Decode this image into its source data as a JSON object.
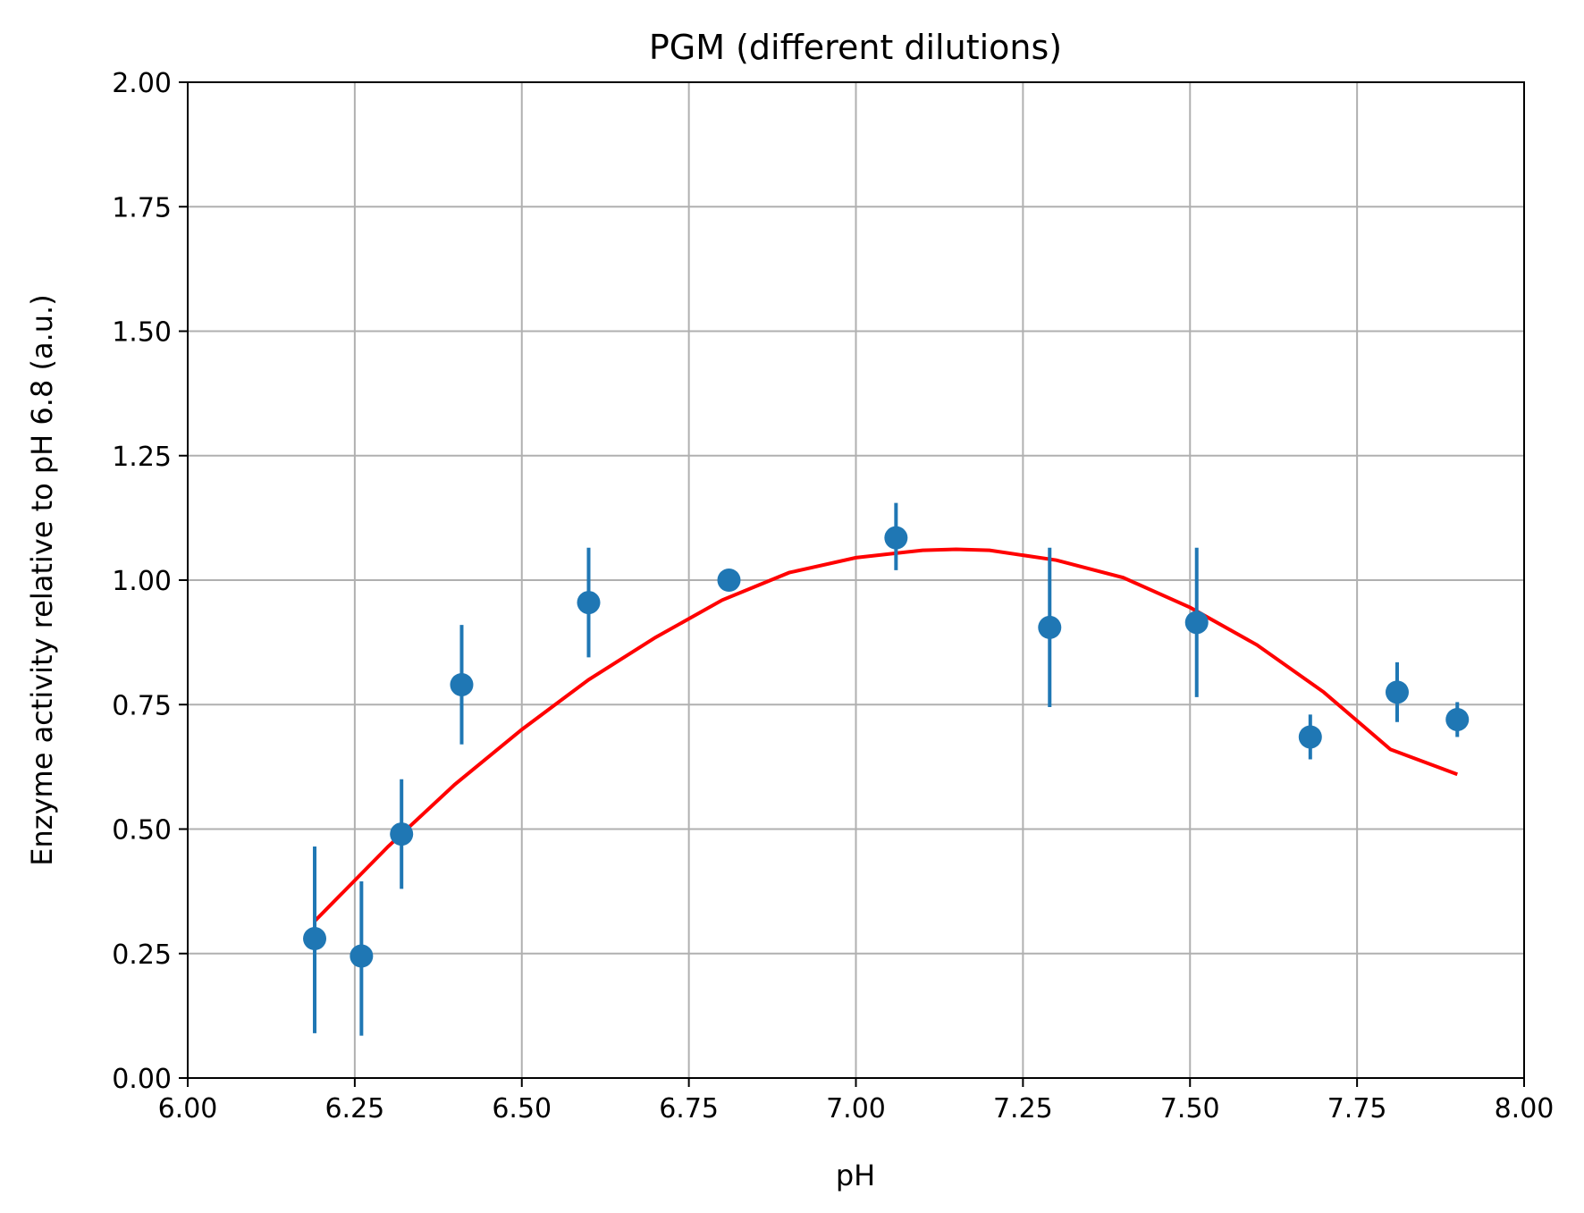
{
  "chart_data": {
    "type": "scatter",
    "title": "PGM (different dilutions)",
    "xlabel": "pH",
    "ylabel": "Enzyme activity relative to pH 6.8 (a.u.)",
    "xlim": [
      6.0,
      8.0
    ],
    "ylim": [
      0.0,
      2.0
    ],
    "xticks": [
      "6.00",
      "6.25",
      "6.50",
      "6.75",
      "7.00",
      "7.25",
      "7.50",
      "7.75",
      "8.00"
    ],
    "yticks": [
      "0.00",
      "0.25",
      "0.50",
      "0.75",
      "1.00",
      "1.25",
      "1.50",
      "1.75",
      "2.00"
    ],
    "grid": true,
    "colors": {
      "points": "#1f77b4",
      "fit": "#ff0000",
      "grid": "#b0b0b0"
    },
    "series": [
      {
        "kind": "errorbar",
        "x": [
          6.19,
          6.26,
          6.32,
          6.41,
          6.6,
          6.81,
          7.06,
          7.29,
          7.51,
          7.68,
          7.81,
          7.9
        ],
        "y": [
          0.28,
          0.245,
          0.49,
          0.79,
          0.955,
          1.0,
          1.085,
          0.905,
          0.915,
          0.685,
          0.775,
          0.72
        ],
        "yerr_low": [
          0.09,
          0.085,
          0.38,
          0.67,
          0.845,
          1.0,
          1.02,
          0.745,
          0.765,
          0.64,
          0.715,
          0.685
        ],
        "yerr_high": [
          0.465,
          0.395,
          0.6,
          0.91,
          1.065,
          1.0,
          1.155,
          1.065,
          1.065,
          0.73,
          0.835,
          0.755
        ]
      },
      {
        "kind": "fit",
        "x": [
          6.19,
          6.3,
          6.4,
          6.5,
          6.6,
          6.7,
          6.8,
          6.9,
          7.0,
          7.1,
          7.15,
          7.2,
          7.3,
          7.4,
          7.5,
          7.6,
          7.7,
          7.8,
          7.9
        ],
        "y": [
          0.315,
          0.465,
          0.59,
          0.7,
          0.8,
          0.885,
          0.96,
          1.015,
          1.045,
          1.06,
          1.062,
          1.06,
          1.04,
          1.005,
          0.945,
          0.87,
          0.775,
          0.66,
          0.61
        ]
      }
    ]
  }
}
